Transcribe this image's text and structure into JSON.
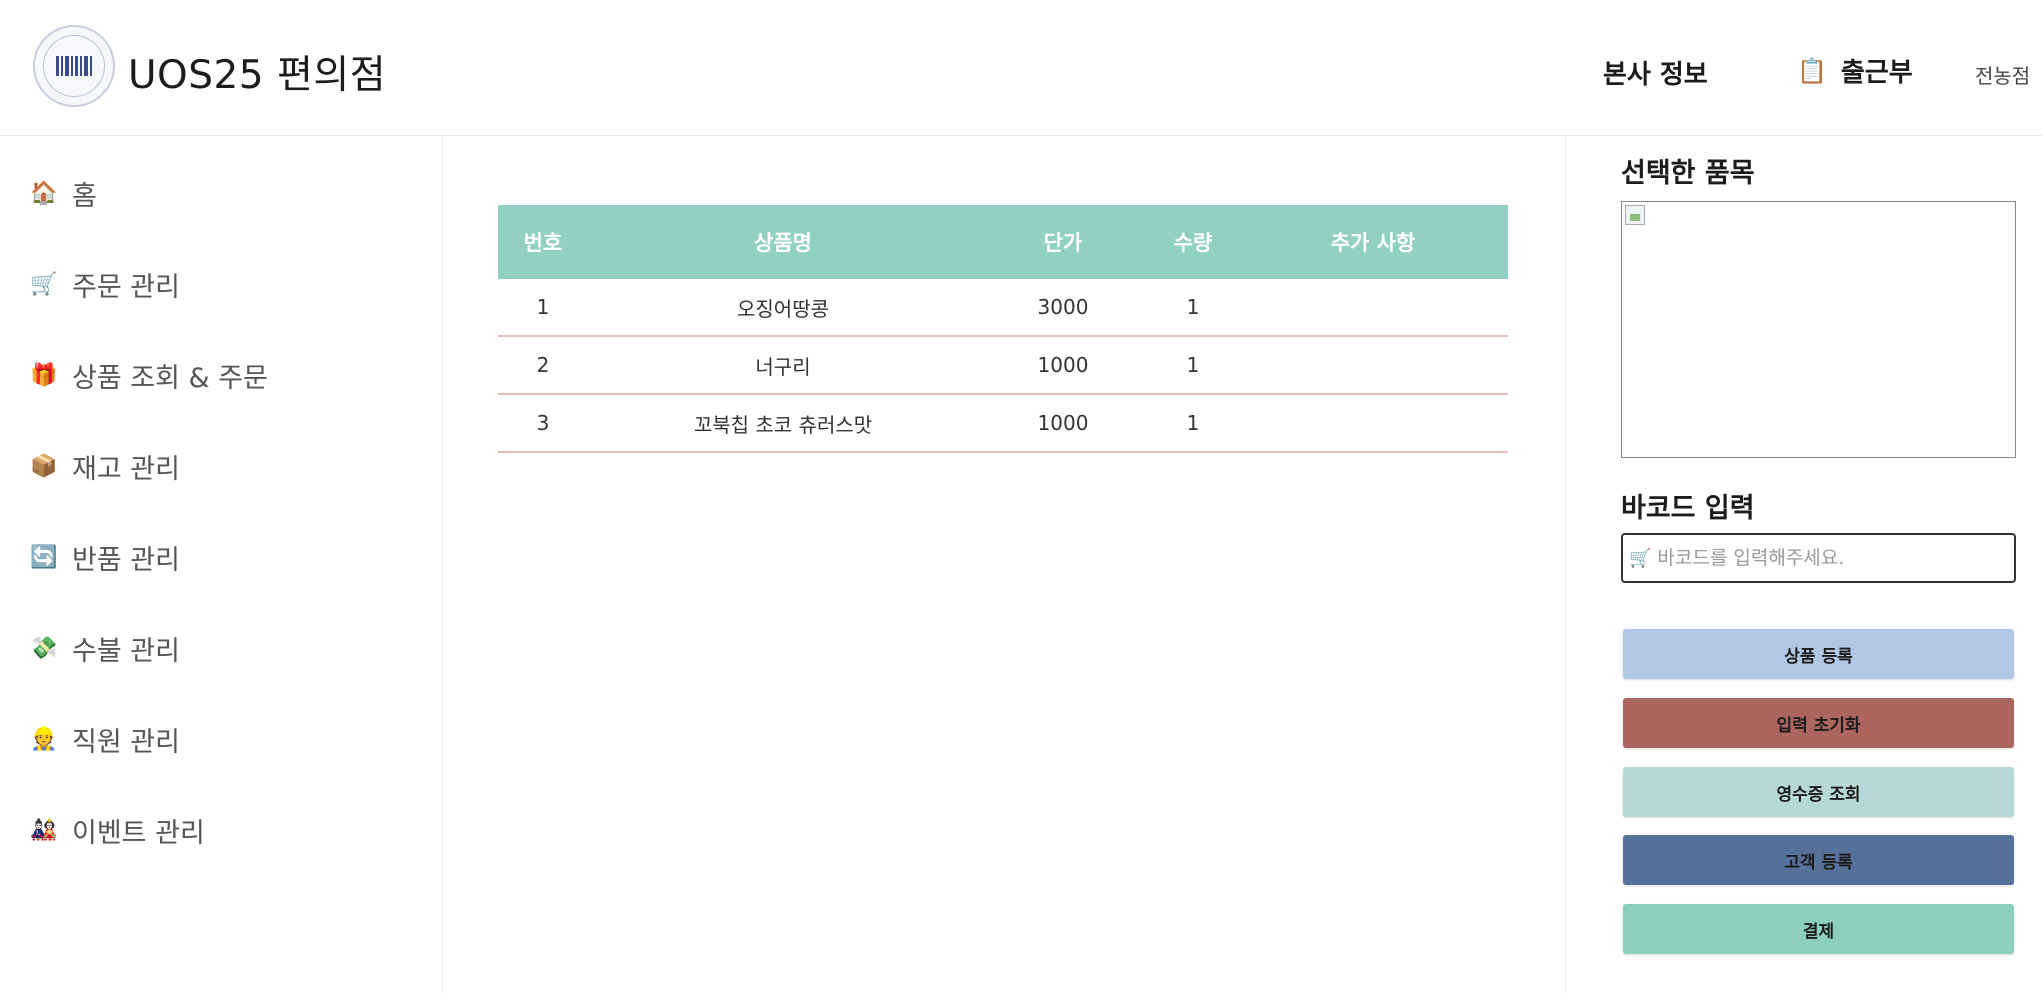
{
  "header": {
    "title": "UOS25 편의점",
    "nav_hq": "본사 정보",
    "nav_attendance": "출근부",
    "store_name": "전농점"
  },
  "sidebar": {
    "items": [
      {
        "icon": "house-icon",
        "glyph": "🏠",
        "label": "홈"
      },
      {
        "icon": "cart-icon",
        "glyph": "🛒",
        "label": "주문 관리"
      },
      {
        "icon": "gift-icon",
        "glyph": "🎁",
        "label": "상품 조회 & 주문"
      },
      {
        "icon": "box-icon",
        "glyph": "📦",
        "label": "재고 관리"
      },
      {
        "icon": "refresh-icon",
        "glyph": "🔄",
        "label": "반품 관리"
      },
      {
        "icon": "money-icon",
        "glyph": "💸",
        "label": "수불 관리"
      },
      {
        "icon": "worker-icon",
        "glyph": "👷",
        "label": "직원 관리"
      },
      {
        "icon": "party-icon",
        "glyph": "🎎",
        "label": "이벤트 관리"
      }
    ]
  },
  "table": {
    "headers": [
      "번호",
      "상품명",
      "단가",
      "수량",
      "추가 사항"
    ],
    "rows": [
      {
        "no": "1",
        "name": "오징어땅콩",
        "price": "3000",
        "qty": "1",
        "extra": ""
      },
      {
        "no": "2",
        "name": "너구리",
        "price": "1000",
        "qty": "1",
        "extra": ""
      },
      {
        "no": "3",
        "name": "꼬북칩 초코 츄러스맛",
        "price": "1000",
        "qty": "1",
        "extra": ""
      }
    ]
  },
  "panel": {
    "selected_title": "선택한 품목",
    "barcode_title": "바코드 입력",
    "barcode_placeholder": "바코드를 입력해주세요.",
    "buttons": [
      {
        "label": "상품 등록",
        "color": "#b0c8e6"
      },
      {
        "label": "입력 초기화",
        "color": "#ad6560"
      },
      {
        "label": "영수증 조회",
        "color": "#b6d8d8"
      },
      {
        "label": "고객 등록",
        "color": "#56719a"
      },
      {
        "label": "결제",
        "color": "#8ccfbf"
      }
    ]
  },
  "colors": {
    "table_header": "#92d0c3",
    "row_divider": "#e9bcbc"
  }
}
